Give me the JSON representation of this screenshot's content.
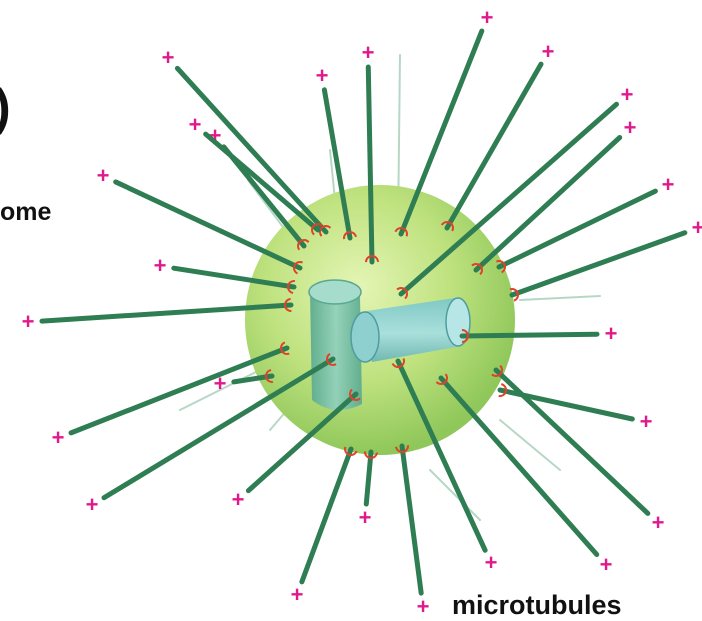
{
  "figure": {
    "panel_letter": ")",
    "labels": {
      "centrosome": "ome",
      "microtubules": "microtubules"
    },
    "plus_end_symbol": "+",
    "minus_end_marker": "minus-end-cap-icon",
    "colors": {
      "microtubule": "#2f7d52",
      "pericentriolar_material": "#b9e07a",
      "centriole": "#7fc2b4",
      "plus_end": "#e0198c",
      "minus_end_cap": "#e0432a",
      "label_text": "#111111"
    }
  }
}
